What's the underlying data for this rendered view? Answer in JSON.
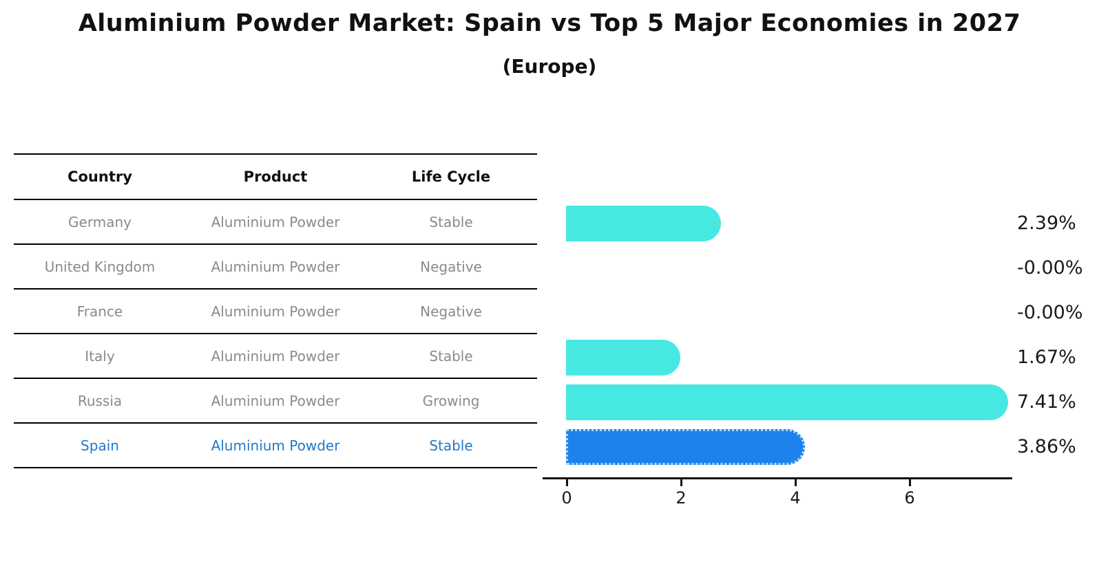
{
  "title": "Aluminium Powder Market: Spain vs Top 5 Major Economies in 2027",
  "subtitle": "(Europe)",
  "table": {
    "headers": [
      "Country",
      "Product",
      "Life Cycle"
    ],
    "rows": [
      {
        "country": "Germany",
        "product": "Aluminium Powder",
        "life_cycle": "Stable"
      },
      {
        "country": "United Kingdom",
        "product": "Aluminium Powder",
        "life_cycle": "Negative"
      },
      {
        "country": "France",
        "product": "Aluminium Powder",
        "life_cycle": "Negative"
      },
      {
        "country": "Italy",
        "product": "Aluminium Powder",
        "life_cycle": "Stable"
      },
      {
        "country": "Russia",
        "product": "Aluminium Powder",
        "life_cycle": "Growing"
      },
      {
        "country": "Spain",
        "product": "Aluminium Powder",
        "life_cycle": "Stable"
      }
    ],
    "highlight_row": 5
  },
  "chart_data": {
    "type": "bar",
    "orientation": "horizontal",
    "categories": [
      "Germany",
      "United Kingdom",
      "France",
      "Italy",
      "Russia",
      "Spain"
    ],
    "values": [
      2.39,
      -0.0,
      -0.0,
      1.67,
      7.41,
      3.86
    ],
    "value_labels": [
      "2.39%",
      "-0.00%",
      "-0.00%",
      "1.67%",
      "7.41%",
      "3.86%"
    ],
    "xticks": [
      0,
      2,
      4,
      6
    ],
    "xtick_labels": [
      "0",
      "2",
      "4",
      "6"
    ],
    "xlim": [
      -0.45,
      7.8
    ],
    "grid": false,
    "bar_color": "#48e8e2",
    "highlight_bar_color": "#1e82ec",
    "highlight_index": 5,
    "highlight_border_color": "#a5dcf2",
    "highlight_text_color": "#1f78c8"
  }
}
